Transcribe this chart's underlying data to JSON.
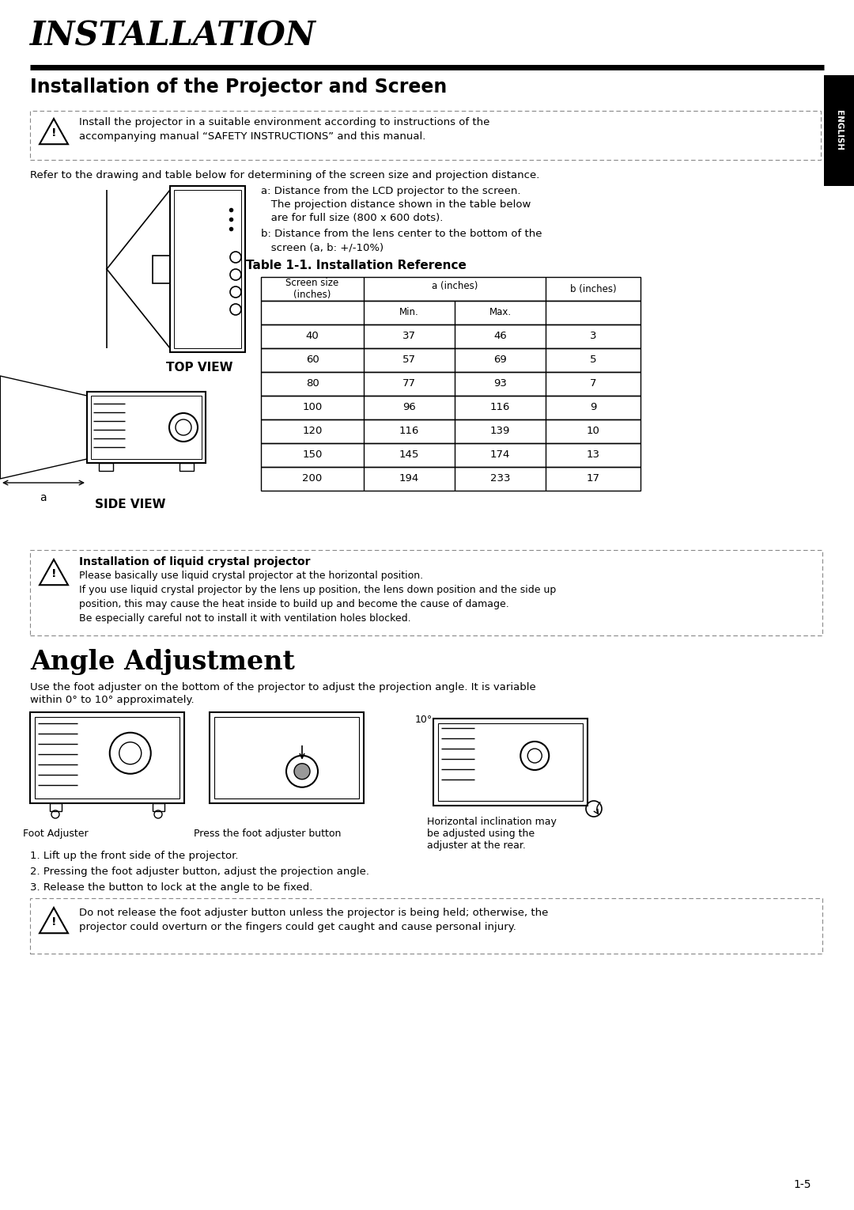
{
  "title": "INSTALLATION",
  "section1_title": "Installation of the Projector and Screen",
  "english_tab": "ENGLISH",
  "warning_text1_line1": "Install the projector in a suitable environment according to instructions of the",
  "warning_text1_line2": "accompanying manual “SAFETY INSTRUCTIONS” and this manual.",
  "ref_text": "Refer to the drawing and table below for determining of the screen size and projection distance.",
  "top_view_label": "TOP VIEW",
  "side_view_label": "SIDE VIEW",
  "note_a_line1": "a: Distance from the LCD projector to the screen.",
  "note_a_line2": "   The projection distance shown in the table below",
  "note_a_line3": "   are for full size (800 x 600 dots).",
  "note_b_line1": "b: Distance from the lens center to the bottom of the",
  "note_b_line2": "   screen (a, b: +/-10%)",
  "table_title": "Table 1-1. Installation Reference",
  "table_data": [
    [
      "40",
      "37",
      "46",
      "3"
    ],
    [
      "60",
      "57",
      "69",
      "5"
    ],
    [
      "80",
      "77",
      "93",
      "7"
    ],
    [
      "100",
      "96",
      "116",
      "9"
    ],
    [
      "120",
      "116",
      "139",
      "10"
    ],
    [
      "150",
      "145",
      "174",
      "13"
    ],
    [
      "200",
      "194",
      "233",
      "17"
    ]
  ],
  "warning_box2_title": "Installation of liquid crystal projector",
  "warning_box2_lines": [
    "Please basically use liquid crystal projector at the horizontal position.",
    "If you use liquid crystal projector by the lens up position, the lens down position and the side up",
    "position, this may cause the heat inside to build up and become the cause of damage.",
    "Be especially careful not to install it with ventilation holes blocked."
  ],
  "section2_title": "Angle Adjustment",
  "angle_text_line1": "Use the foot adjuster on the bottom of the projector to adjust the projection angle. It is variable",
  "angle_text_line2": "within 0° to 10° approximately.",
  "foot_adjuster_label": "Foot Adjuster",
  "press_button_label": "Press the foot adjuster button",
  "horiz_label_line1": "Horizontal inclination may",
  "horiz_label_line2": "be adjusted using the",
  "horiz_label_line3": "adjuster at the rear.",
  "angle_label": "10°",
  "steps": [
    "1. Lift up the front side of the projector.",
    "2. Pressing the foot adjuster button, adjust the projection angle.",
    "3. Release the button to lock at the angle to be fixed."
  ],
  "warning_text3_line1": "Do not release the foot adjuster button unless the projector is being held; otherwise, the",
  "warning_text3_line2": "projector could overturn or the fingers could get caught and cause personal injury.",
  "page_num": "1-5"
}
